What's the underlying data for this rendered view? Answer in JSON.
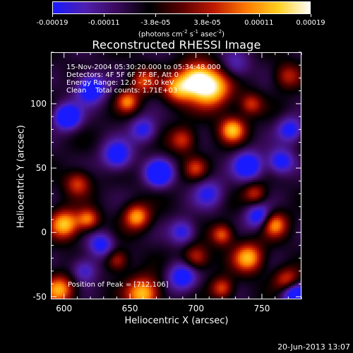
{
  "colorbar": {
    "ticks": [
      "-0.00019",
      "-0.00011",
      "-3.8e-05",
      "3.8e-05",
      "0.00011",
      "0.00019"
    ],
    "unit_main": "(photons cm",
    "unit_sup1": "-2",
    "unit_mid": " s",
    "unit_sup2": "-1",
    "unit_end": " asec",
    "unit_sup3": "-2",
    "unit_close": ")",
    "palette": [
      "#1a1aff",
      "#5020b0",
      "#3a0a5a",
      "#000000",
      "#5a0000",
      "#c01a00",
      "#ff7a00",
      "#ffd020",
      "#ffffff"
    ]
  },
  "chart_data": {
    "type": "heatmap",
    "title": "Reconstructed RHESSI Image",
    "xlabel": "Heliocentric X (arcsec)",
    "ylabel": "Heliocentric Y (arcsec)",
    "xlim": [
      590,
      780
    ],
    "ylim": [
      -52,
      140
    ],
    "xticks": [
      600,
      650,
      700,
      750
    ],
    "yticks": [
      -50,
      0,
      50,
      100
    ],
    "annotations": [
      "15-Nov-2004 05:30:20.000 to 05:34:48.000",
      "Detectors: 4F 5F 6F 7F 8F, Att 0",
      "Energy Range: 12.0 - 25.0 keV",
      "Clean    Total counts: 1.71E+03"
    ],
    "peak_label": "Position of Peak = [712,106]",
    "peak": [
      712,
      106
    ],
    "blobs": [
      {
        "x": 712,
        "y": 112,
        "v": 1.0,
        "r": 11
      },
      {
        "x": 700,
        "y": 120,
        "v": 0.9,
        "r": 9
      },
      {
        "x": 686,
        "y": 112,
        "v": 0.75,
        "r": 8
      },
      {
        "x": 660,
        "y": 118,
        "v": 0.6,
        "r": 7
      },
      {
        "x": 648,
        "y": 102,
        "v": 0.7,
        "r": 6
      },
      {
        "x": 728,
        "y": 80,
        "v": 0.9,
        "r": 7
      },
      {
        "x": 742,
        "y": 100,
        "v": 0.55,
        "r": 6
      },
      {
        "x": 770,
        "y": 122,
        "v": 0.5,
        "r": 7
      },
      {
        "x": 690,
        "y": 72,
        "v": 0.6,
        "r": 7
      },
      {
        "x": 700,
        "y": 50,
        "v": 0.5,
        "r": 6
      },
      {
        "x": 610,
        "y": 38,
        "v": 0.6,
        "r": 7
      },
      {
        "x": 600,
        "y": 6,
        "v": 0.95,
        "r": 8
      },
      {
        "x": 618,
        "y": 10,
        "v": 0.7,
        "r": 6
      },
      {
        "x": 655,
        "y": 12,
        "v": 0.85,
        "r": 7
      },
      {
        "x": 640,
        "y": -22,
        "v": 0.55,
        "r": 6
      },
      {
        "x": 660,
        "y": -48,
        "v": 0.95,
        "r": 9
      },
      {
        "x": 596,
        "y": -45,
        "v": 0.85,
        "r": 8
      },
      {
        "x": 700,
        "y": -20,
        "v": 0.6,
        "r": 7
      },
      {
        "x": 720,
        "y": -2,
        "v": 0.7,
        "r": 6
      },
      {
        "x": 745,
        "y": 30,
        "v": 0.55,
        "r": 6
      },
      {
        "x": 760,
        "y": 6,
        "v": 0.8,
        "r": 7
      },
      {
        "x": 740,
        "y": -20,
        "v": 0.9,
        "r": 8
      },
      {
        "x": 770,
        "y": -38,
        "v": 0.7,
        "r": 7
      },
      {
        "x": 720,
        "y": -44,
        "v": 0.65,
        "r": 6
      },
      {
        "x": 620,
        "y": 112,
        "v": -0.8,
        "r": 8
      },
      {
        "x": 602,
        "y": 90,
        "v": -0.9,
        "r": 7
      },
      {
        "x": 640,
        "y": 60,
        "v": -0.7,
        "r": 8
      },
      {
        "x": 672,
        "y": 46,
        "v": -0.95,
        "r": 7
      },
      {
        "x": 660,
        "y": 80,
        "v": -0.55,
        "r": 7
      },
      {
        "x": 740,
        "y": 52,
        "v": -0.75,
        "r": 8
      },
      {
        "x": 772,
        "y": 80,
        "v": -0.6,
        "r": 7
      },
      {
        "x": 765,
        "y": 55,
        "v": -0.65,
        "r": 7
      },
      {
        "x": 628,
        "y": -10,
        "v": -0.6,
        "r": 7
      },
      {
        "x": 690,
        "y": 0,
        "v": -0.55,
        "r": 7
      },
      {
        "x": 690,
        "y": -35,
        "v": -0.7,
        "r": 8
      },
      {
        "x": 748,
        "y": 12,
        "v": -0.7,
        "r": 7
      },
      {
        "x": 775,
        "y": -48,
        "v": -0.9,
        "r": 7
      },
      {
        "x": 615,
        "y": -30,
        "v": -0.5,
        "r": 7
      },
      {
        "x": 710,
        "y": 30,
        "v": -0.5,
        "r": 8
      },
      {
        "x": 730,
        "y": 130,
        "v": -0.4,
        "r": 8
      }
    ]
  },
  "footer": {
    "date": "20-Jun-2013 13:07"
  }
}
